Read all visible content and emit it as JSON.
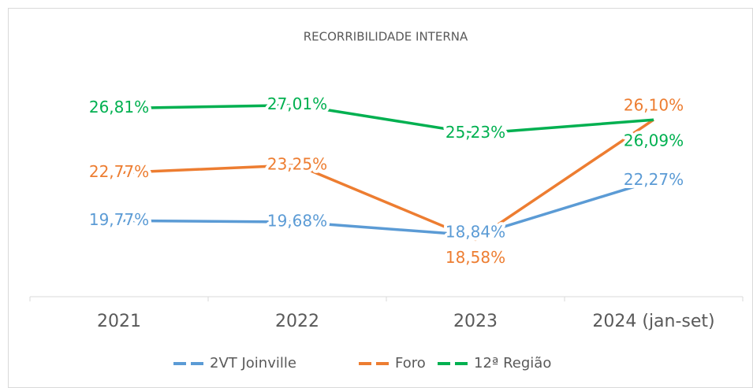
{
  "chart_data": {
    "type": "line",
    "title": "RECORRIBILIDADE INTERNA",
    "categories": [
      "2021",
      "2022",
      "2023",
      "2024 (jan-set)"
    ],
    "series": [
      {
        "name": "2VT Joinville",
        "color": "#5b9bd5",
        "values": [
          19.77,
          19.68,
          18.84,
          22.27
        ],
        "value_labels": [
          "19,77%",
          "19,68%",
          "18,84%",
          "22,27%"
        ]
      },
      {
        "name": "Foro",
        "color": "#ed7d31",
        "values": [
          22.77,
          23.25,
          18.58,
          26.1
        ],
        "value_labels": [
          "22,77%",
          "23,25%",
          "18,58%",
          "26,10%"
        ]
      },
      {
        "name": "12ª Região",
        "color": "#00b050",
        "values": [
          26.81,
          27.01,
          25.23,
          26.09
        ],
        "value_labels": [
          "26,81%",
          "27,01%",
          "25,23%",
          "26,09%"
        ]
      }
    ],
    "ylim": [
      15,
      30
    ],
    "legend": "bottom"
  }
}
